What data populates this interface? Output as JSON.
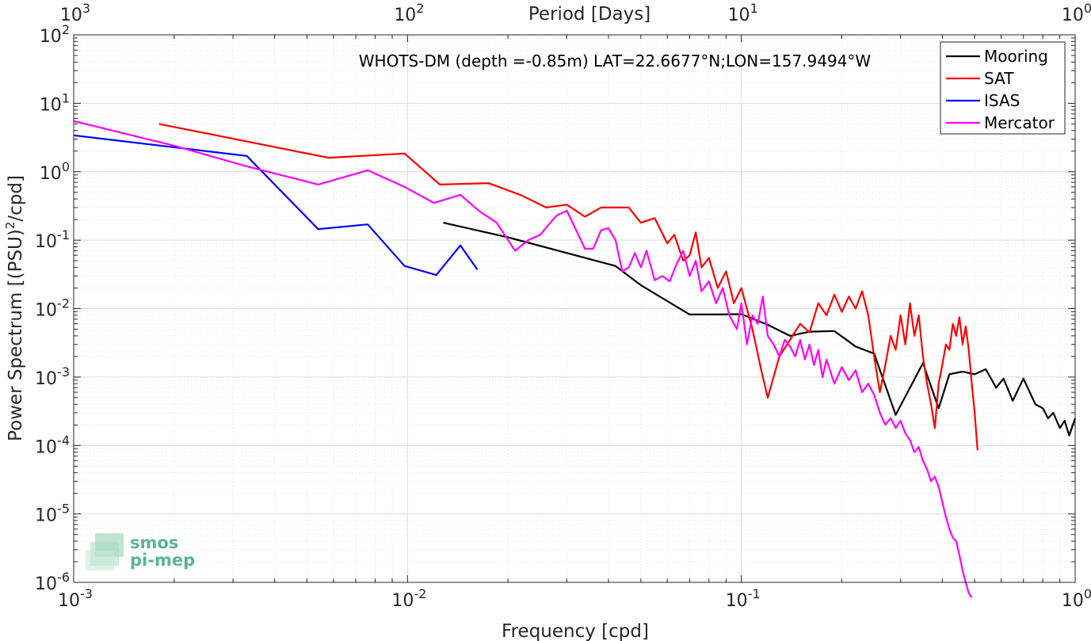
{
  "chart_data": {
    "type": "line",
    "title": "",
    "annotation": "WHOTS-DM (depth =-0.85m) LAT=22.6677°N;LON=157.9494°W",
    "xlabel": "Frequency [cpd]",
    "ylabel": "Power Spectrum [(PSU)",
    "ylabel_sup": "2",
    "ylabel_tail": "/cpd]",
    "top_xlabel": "Period [Days]",
    "xscale": "log",
    "yscale": "log",
    "xlim": [
      0.001,
      1
    ],
    "ylim": [
      1e-06,
      100
    ],
    "grid": true,
    "legend_position": "top-right",
    "x_ticks": [
      {
        "value": 0.001,
        "base": "10",
        "exp": "-3"
      },
      {
        "value": 0.01,
        "base": "10",
        "exp": "-2"
      },
      {
        "value": 0.1,
        "base": "10",
        "exp": "-1"
      },
      {
        "value": 1,
        "base": "10",
        "exp": "0"
      }
    ],
    "top_ticks": [
      {
        "value": 0.001,
        "base": "10",
        "exp": "3"
      },
      {
        "value": 0.01,
        "base": "10",
        "exp": "2"
      },
      {
        "value": 0.1,
        "base": "10",
        "exp": "1"
      },
      {
        "value": 1,
        "base": "10",
        "exp": "0"
      }
    ],
    "y_ticks": [
      {
        "value": 100,
        "base": "10",
        "exp": "2"
      },
      {
        "value": 10,
        "base": "10",
        "exp": "1"
      },
      {
        "value": 1,
        "base": "10",
        "exp": "0"
      },
      {
        "value": 0.1,
        "base": "10",
        "exp": "-1"
      },
      {
        "value": 0.01,
        "base": "10",
        "exp": "-2"
      },
      {
        "value": 0.001,
        "base": "10",
        "exp": "-3"
      },
      {
        "value": 0.0001,
        "base": "10",
        "exp": "-4"
      },
      {
        "value": 1e-05,
        "base": "10",
        "exp": "-5"
      },
      {
        "value": 1e-06,
        "base": "10",
        "exp": "-6"
      }
    ],
    "series": [
      {
        "name": "Mooring",
        "color": "#000000",
        "points": [
          [
            0.0128,
            0.18
          ],
          [
            0.02,
            0.11
          ],
          [
            0.03,
            0.065
          ],
          [
            0.042,
            0.042
          ],
          [
            0.05,
            0.022
          ],
          [
            0.07,
            0.0082
          ],
          [
            0.085,
            0.0082
          ],
          [
            0.1,
            0.0083
          ],
          [
            0.12,
            0.0058
          ],
          [
            0.14,
            0.004
          ],
          [
            0.16,
            0.0046
          ],
          [
            0.19,
            0.0047
          ],
          [
            0.22,
            0.0028
          ],
          [
            0.25,
            0.0022
          ],
          [
            0.29,
            0.00028
          ],
          [
            0.35,
            0.0016
          ],
          [
            0.39,
            0.00035
          ],
          [
            0.42,
            0.0011
          ],
          [
            0.46,
            0.0012
          ],
          [
            0.5,
            0.0011
          ],
          [
            0.54,
            0.0013
          ],
          [
            0.58,
            0.0007
          ],
          [
            0.61,
            0.00095
          ],
          [
            0.65,
            0.00045
          ],
          [
            0.7,
            0.00095
          ],
          [
            0.76,
            0.0004
          ],
          [
            0.8,
            0.00035
          ],
          [
            0.83,
            0.00025
          ],
          [
            0.86,
            0.0003
          ],
          [
            0.9,
            0.00018
          ],
          [
            0.93,
            0.00023
          ],
          [
            0.96,
            0.00014
          ],
          [
            1.0,
            0.00025
          ]
        ]
      },
      {
        "name": "SAT",
        "color": "#ff0000",
        "points": [
          [
            0.0018,
            5.0
          ],
          [
            0.0058,
            1.6
          ],
          [
            0.0098,
            1.85
          ],
          [
            0.0125,
            0.65
          ],
          [
            0.0175,
            0.68
          ],
          [
            0.022,
            0.45
          ],
          [
            0.026,
            0.3
          ],
          [
            0.03,
            0.33
          ],
          [
            0.034,
            0.22
          ],
          [
            0.038,
            0.3
          ],
          [
            0.046,
            0.3
          ],
          [
            0.05,
            0.18
          ],
          [
            0.055,
            0.21
          ],
          [
            0.06,
            0.09
          ],
          [
            0.063,
            0.12
          ],
          [
            0.067,
            0.05
          ],
          [
            0.07,
            0.06
          ],
          [
            0.073,
            0.13
          ],
          [
            0.076,
            0.04
          ],
          [
            0.08,
            0.055
          ],
          [
            0.085,
            0.02
          ],
          [
            0.09,
            0.035
          ],
          [
            0.095,
            0.012
          ],
          [
            0.1,
            0.02
          ],
          [
            0.108,
            0.005
          ],
          [
            0.115,
            0.0012
          ],
          [
            0.12,
            0.0005
          ],
          [
            0.13,
            0.002
          ],
          [
            0.14,
            0.0035
          ],
          [
            0.15,
            0.006
          ],
          [
            0.16,
            0.0045
          ],
          [
            0.17,
            0.012
          ],
          [
            0.18,
            0.008
          ],
          [
            0.19,
            0.016
          ],
          [
            0.2,
            0.009
          ],
          [
            0.21,
            0.015
          ],
          [
            0.22,
            0.01
          ],
          [
            0.23,
            0.018
          ],
          [
            0.24,
            0.008
          ],
          [
            0.25,
            0.002
          ],
          [
            0.26,
            0.0006
          ],
          [
            0.27,
            0.0015
          ],
          [
            0.28,
            0.004
          ],
          [
            0.29,
            0.0025
          ],
          [
            0.3,
            0.008
          ],
          [
            0.31,
            0.003
          ],
          [
            0.32,
            0.012
          ],
          [
            0.33,
            0.004
          ],
          [
            0.34,
            0.008
          ],
          [
            0.35,
            0.002
          ],
          [
            0.36,
            0.0008
          ],
          [
            0.37,
            0.0004
          ],
          [
            0.38,
            0.00018
          ],
          [
            0.39,
            0.0008
          ],
          [
            0.4,
            0.0015
          ],
          [
            0.41,
            0.003
          ],
          [
            0.42,
            0.0025
          ],
          [
            0.43,
            0.006
          ],
          [
            0.44,
            0.004
          ],
          [
            0.45,
            0.0075
          ],
          [
            0.46,
            0.003
          ],
          [
            0.47,
            0.0055
          ],
          [
            0.48,
            0.0025
          ],
          [
            0.49,
            0.0008
          ],
          [
            0.5,
            0.0003
          ],
          [
            0.51,
            8.5e-05
          ]
        ]
      },
      {
        "name": "ISAS",
        "color": "#0000ff",
        "points": [
          [
            0.001,
            3.4
          ],
          [
            0.0033,
            1.7
          ],
          [
            0.0054,
            0.145
          ],
          [
            0.0076,
            0.17
          ],
          [
            0.0098,
            0.042
          ],
          [
            0.0122,
            0.031
          ],
          [
            0.0144,
            0.084
          ],
          [
            0.0162,
            0.037
          ]
        ]
      },
      {
        "name": "Mercator",
        "color": "#ff00ff",
        "points": [
          [
            0.001,
            5.5
          ],
          [
            0.002,
            2.4
          ],
          [
            0.0033,
            1.2
          ],
          [
            0.0054,
            0.65
          ],
          [
            0.0076,
            1.05
          ],
          [
            0.0098,
            0.6
          ],
          [
            0.012,
            0.35
          ],
          [
            0.0144,
            0.46
          ],
          [
            0.0165,
            0.26
          ],
          [
            0.0185,
            0.18
          ],
          [
            0.021,
            0.07
          ],
          [
            0.023,
            0.1
          ],
          [
            0.025,
            0.12
          ],
          [
            0.0265,
            0.17
          ],
          [
            0.028,
            0.23
          ],
          [
            0.03,
            0.27
          ],
          [
            0.032,
            0.14
          ],
          [
            0.034,
            0.075
          ],
          [
            0.036,
            0.075
          ],
          [
            0.038,
            0.14
          ],
          [
            0.04,
            0.15
          ],
          [
            0.042,
            0.1
          ],
          [
            0.044,
            0.035
          ],
          [
            0.046,
            0.04
          ],
          [
            0.048,
            0.065
          ],
          [
            0.05,
            0.04
          ],
          [
            0.052,
            0.07
          ],
          [
            0.055,
            0.026
          ],
          [
            0.058,
            0.03
          ],
          [
            0.061,
            0.025
          ],
          [
            0.064,
            0.045
          ],
          [
            0.067,
            0.07
          ],
          [
            0.07,
            0.03
          ],
          [
            0.073,
            0.05
          ],
          [
            0.076,
            0.018
          ],
          [
            0.08,
            0.025
          ],
          [
            0.084,
            0.012
          ],
          [
            0.088,
            0.02
          ],
          [
            0.092,
            0.008
          ],
          [
            0.097,
            0.005
          ],
          [
            0.1,
            0.012
          ],
          [
            0.104,
            0.003
          ],
          [
            0.108,
            0.008
          ],
          [
            0.112,
            0.006
          ],
          [
            0.116,
            0.015
          ],
          [
            0.12,
            0.004
          ],
          [
            0.125,
            0.003
          ],
          [
            0.13,
            0.002
          ],
          [
            0.135,
            0.0035
          ],
          [
            0.14,
            0.0028
          ],
          [
            0.145,
            0.002
          ],
          [
            0.15,
            0.0035
          ],
          [
            0.155,
            0.0018
          ],
          [
            0.16,
            0.003
          ],
          [
            0.165,
            0.0015
          ],
          [
            0.17,
            0.0025
          ],
          [
            0.175,
            0.001
          ],
          [
            0.18,
            0.0018
          ],
          [
            0.19,
            0.0008
          ],
          [
            0.2,
            0.0014
          ],
          [
            0.21,
            0.0009
          ],
          [
            0.22,
            0.00125
          ],
          [
            0.23,
            0.0006
          ],
          [
            0.24,
            0.0008
          ],
          [
            0.25,
            0.00055
          ],
          [
            0.26,
            0.0003
          ],
          [
            0.27,
            0.0002
          ],
          [
            0.28,
            0.00025
          ],
          [
            0.29,
            0.00018
          ],
          [
            0.3,
            0.00023
          ],
          [
            0.31,
            0.00015
          ],
          [
            0.32,
            0.00012
          ],
          [
            0.33,
            8e-05
          ],
          [
            0.34,
            9.5e-05
          ],
          [
            0.35,
            6e-05
          ],
          [
            0.36,
            4.5e-05
          ],
          [
            0.37,
            3e-05
          ],
          [
            0.38,
            3.5e-05
          ],
          [
            0.39,
            2.5e-05
          ],
          [
            0.4,
            1.5e-05
          ],
          [
            0.41,
            9e-06
          ],
          [
            0.42,
            6e-06
          ],
          [
            0.43,
            4.5e-06
          ],
          [
            0.44,
            4e-06
          ],
          [
            0.45,
            2.5e-06
          ],
          [
            0.46,
            1.5e-06
          ],
          [
            0.47,
            1e-06
          ],
          [
            0.48,
            7e-07
          ],
          [
            0.49,
            6e-07
          ]
        ]
      }
    ]
  },
  "logo": {
    "line1": "smos",
    "line2": "pi-mep",
    "color": "#5bb58d"
  }
}
